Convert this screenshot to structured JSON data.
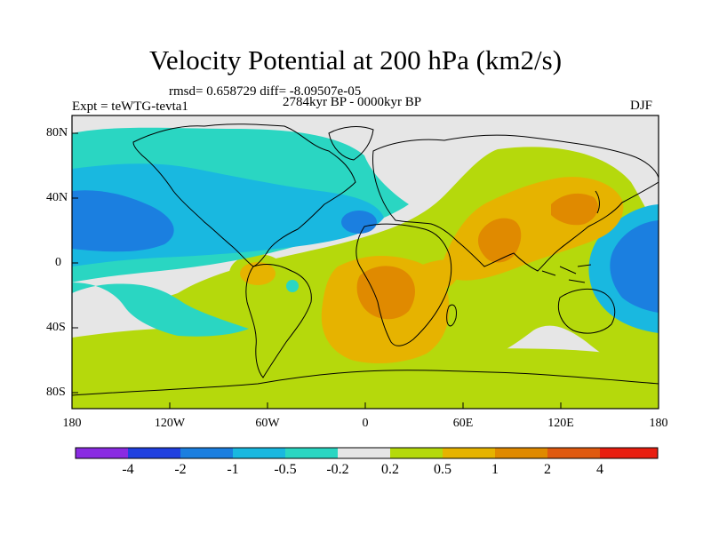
{
  "map": {
    "title": "Velocity Potential at 200 hPa (km2/s)",
    "stats_line": "rmsd= 0.658729 diff= -8.09507e-05",
    "period": "2784kyr BP - 0000kyr BP",
    "experiment": "Expt = teWTG-tevta1",
    "season": "DJF",
    "projection": "cylindrical equidistant",
    "lon_range": [
      -180,
      180
    ],
    "lat_range": [
      -90,
      90
    ],
    "lat_tick_labels": [
      "80N",
      "40N",
      "0",
      "40S",
      "80S"
    ],
    "lon_tick_labels": [
      "180",
      "120W",
      "60W",
      "0",
      "60E",
      "120E",
      "180"
    ]
  },
  "colorbar": {
    "tick_labels": [
      "-4",
      "-2",
      "-1",
      "-0.5",
      "-0.2",
      "0.2",
      "0.5",
      "1",
      "2",
      "4"
    ],
    "colors": [
      "#8a2be2",
      "#2040e0",
      "#1b7fe0",
      "#19b8e0",
      "#2ad6c2",
      "#e6e6e6",
      "#b5d90c",
      "#e6b300",
      "#e08a00",
      "#e05a10",
      "#e81e10"
    ]
  },
  "fields": {
    "west_pacific_low": "#1b7fe0",
    "atlantic_low": "#1b7fe0",
    "north_america_band": "#19b8e0",
    "negative_belt": "#2ad6c2",
    "neutral": "#e6e6e6",
    "positive_belt": "#b5d90c",
    "africa_high": "#e6b300",
    "central_africa_core": "#e08a00",
    "asia_high": "#e6b300",
    "india_core": "#e08a00",
    "japan_core": "#e08a00",
    "maritime_low": "#19b8e0",
    "maritime_core": "#1b7fe0",
    "amazon_high": "#e6b300"
  }
}
